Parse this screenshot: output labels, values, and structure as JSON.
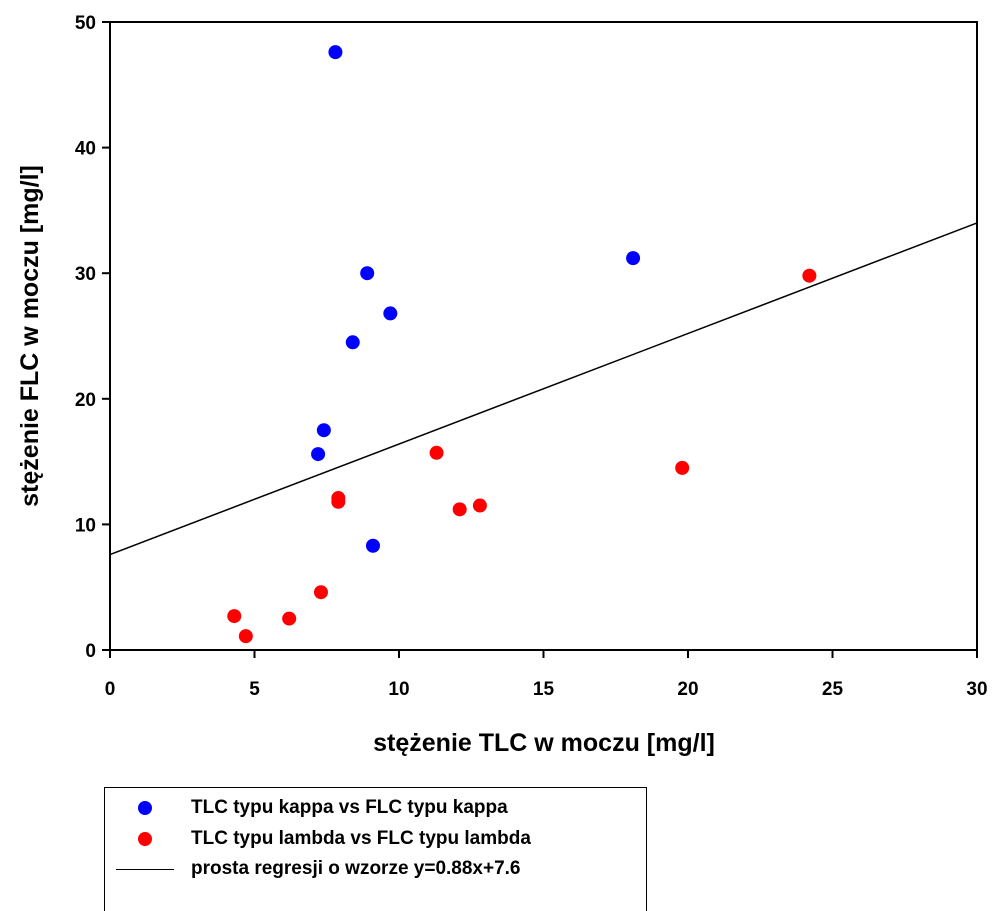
{
  "chart_data": {
    "type": "scatter",
    "xlabel": "stężenie TLC w moczu [mg/l]",
    "ylabel": "stężenie FLC w moczu [mg/l]",
    "xlim": [
      0,
      30
    ],
    "ylim": [
      0,
      50
    ],
    "xticks": [
      0,
      5,
      10,
      15,
      20,
      25,
      30
    ],
    "yticks": [
      0,
      10,
      20,
      30,
      40,
      50
    ],
    "grid": false,
    "legend_position": "bottom",
    "series": [
      {
        "name": "TLC typu kappa vs FLC typu kappa",
        "color": "#0000ff",
        "points": [
          [
            7.8,
            47.6
          ],
          [
            8.9,
            30.0
          ],
          [
            9.7,
            26.8
          ],
          [
            8.4,
            24.5
          ],
          [
            7.4,
            17.5
          ],
          [
            7.2,
            15.6
          ],
          [
            9.1,
            8.3
          ],
          [
            18.1,
            31.2
          ]
        ]
      },
      {
        "name": "TLC typu lambda vs FLC typu lambda",
        "color": "#ff0000",
        "points": [
          [
            4.3,
            2.7
          ],
          [
            4.7,
            1.1
          ],
          [
            6.2,
            2.5
          ],
          [
            7.3,
            4.6
          ],
          [
            7.9,
            12.1
          ],
          [
            7.9,
            11.8
          ],
          [
            11.3,
            15.7
          ],
          [
            12.1,
            11.2
          ],
          [
            12.8,
            11.5
          ],
          [
            19.8,
            14.5
          ],
          [
            24.2,
            29.8
          ]
        ]
      }
    ],
    "regression": {
      "name": "prosta regresji o wzorze y=0.88x+7.6",
      "slope": 0.88,
      "intercept": 7.6,
      "color": "#000000"
    }
  }
}
